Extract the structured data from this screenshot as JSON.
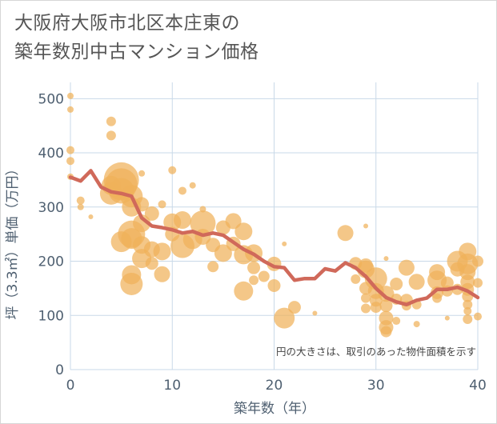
{
  "title_lines": [
    "大阪府大阪市北区本庄東の",
    "築年数別中古マンション価格"
  ],
  "colors": {
    "bubble": "#f0b25a",
    "line": "#d0695a",
    "grid": "#c9d9e8",
    "text": "#4e5f70"
  },
  "chart_data": {
    "type": "scatter",
    "title": "大阪府大阪市北区本庄東の築年数別中古マンション価格",
    "xlabel": "築年数（年）",
    "ylabel": "坪（3.3㎡）単価（万円）",
    "xlim": [
      0,
      40
    ],
    "ylim": [
      0,
      530
    ],
    "x_ticks": [
      0,
      10,
      20,
      30,
      40
    ],
    "y_ticks": [
      0,
      100,
      200,
      300,
      400,
      500
    ],
    "grid": true,
    "note": "円の大きさは、取引のあった物件面積を示す",
    "bubbles": [
      [
        0,
        505,
        4
      ],
      [
        0,
        480,
        4
      ],
      [
        0,
        405,
        5
      ],
      [
        0,
        385,
        5
      ],
      [
        0,
        356,
        4
      ],
      [
        1,
        312,
        5
      ],
      [
        1,
        300,
        4
      ],
      [
        2,
        282,
        3
      ],
      [
        4,
        458,
        6
      ],
      [
        4,
        432,
        6
      ],
      [
        4,
        340,
        12
      ],
      [
        4,
        325,
        14
      ],
      [
        5,
        350,
        22
      ],
      [
        5,
        342,
        20
      ],
      [
        5,
        330,
        16
      ],
      [
        5,
        236,
        13
      ],
      [
        6,
        320,
        14
      ],
      [
        6,
        300,
        12
      ],
      [
        6,
        250,
        17
      ],
      [
        6,
        242,
        13
      ],
      [
        6,
        175,
        12
      ],
      [
        6,
        158,
        14
      ],
      [
        7,
        305,
        9
      ],
      [
        7,
        270,
        11
      ],
      [
        7,
        230,
        11
      ],
      [
        7,
        205,
        12
      ],
      [
        7,
        362,
        4
      ],
      [
        8,
        288,
        9
      ],
      [
        8,
        222,
        10
      ],
      [
        8,
        196,
        8
      ],
      [
        9,
        218,
        11
      ],
      [
        9,
        176,
        10
      ],
      [
        9,
        305,
        5
      ],
      [
        10,
        368,
        5
      ],
      [
        10,
        272,
        11
      ],
      [
        10,
        250,
        9
      ],
      [
        11,
        330,
        5
      ],
      [
        11,
        228,
        15
      ],
      [
        11,
        276,
        11
      ],
      [
        12,
        340,
        4
      ],
      [
        12,
        240,
        12
      ],
      [
        13,
        270,
        16
      ],
      [
        13,
        245,
        10
      ],
      [
        13,
        296,
        4
      ],
      [
        14,
        190,
        7
      ],
      [
        14,
        230,
        9
      ],
      [
        15,
        262,
        9
      ],
      [
        15,
        215,
        11
      ],
      [
        16,
        274,
        10
      ],
      [
        16,
        232,
        9
      ],
      [
        17,
        255,
        11
      ],
      [
        17,
        212,
        12
      ],
      [
        17,
        145,
        12
      ],
      [
        18,
        215,
        11
      ],
      [
        18,
        188,
        8
      ],
      [
        18,
        165,
        6
      ],
      [
        19,
        172,
        7
      ],
      [
        20,
        195,
        9
      ],
      [
        20,
        155,
        8
      ],
      [
        21,
        232,
        3
      ],
      [
        21,
        95,
        13
      ],
      [
        22,
        115,
        8
      ],
      [
        24,
        104,
        3
      ],
      [
        27,
        252,
        10
      ],
      [
        28,
        196,
        8
      ],
      [
        28,
        167,
        6
      ],
      [
        29,
        192,
        9
      ],
      [
        29,
        185,
        11
      ],
      [
        29,
        150,
        8
      ],
      [
        29,
        132,
        6
      ],
      [
        29,
        113,
        6
      ],
      [
        29,
        265,
        3
      ],
      [
        30,
        168,
        14
      ],
      [
        30,
        145,
        10
      ],
      [
        30,
        128,
        8
      ],
      [
        30,
        115,
        7
      ],
      [
        31,
        140,
        10
      ],
      [
        31,
        118,
        8
      ],
      [
        31,
        95,
        9
      ],
      [
        31,
        78,
        9
      ],
      [
        31,
        70,
        7
      ],
      [
        31,
        205,
        3
      ],
      [
        32,
        158,
        8
      ],
      [
        32,
        130,
        7
      ],
      [
        32,
        90,
        5
      ],
      [
        33,
        188,
        10
      ],
      [
        33,
        128,
        8
      ],
      [
        33,
        118,
        6
      ],
      [
        34,
        162,
        10
      ],
      [
        34,
        120,
        6
      ],
      [
        34,
        84,
        4
      ],
      [
        36,
        180,
        10
      ],
      [
        36,
        165,
        12
      ],
      [
        36,
        142,
        8
      ],
      [
        36,
        132,
        6
      ],
      [
        37,
        160,
        8
      ],
      [
        37,
        145,
        7
      ],
      [
        37,
        95,
        3
      ],
      [
        38,
        200,
        13
      ],
      [
        38,
        185,
        9
      ],
      [
        38,
        148,
        7
      ],
      [
        39,
        218,
        11
      ],
      [
        39,
        195,
        13
      ],
      [
        39,
        180,
        10
      ],
      [
        39,
        162,
        9
      ],
      [
        39,
        148,
        8
      ],
      [
        39,
        135,
        7
      ],
      [
        39,
        120,
        6
      ],
      [
        39,
        108,
        5
      ],
      [
        39,
        93,
        6
      ],
      [
        40,
        200,
        7
      ],
      [
        40,
        160,
        6
      ],
      [
        40,
        98,
        5
      ]
    ],
    "bubble_format": [
      "x",
      "y",
      "size"
    ],
    "series": [
      {
        "x": [
          0,
          1,
          2,
          3,
          4,
          5,
          6,
          7,
          8,
          9,
          10,
          11,
          12,
          13,
          14,
          15,
          16,
          17,
          18,
          19,
          20,
          21,
          22,
          23,
          24,
          25,
          26,
          27,
          28,
          29,
          30,
          31,
          32,
          33,
          34,
          35,
          36,
          37,
          38,
          39,
          40
        ],
        "values": [
          355,
          348,
          367,
          337,
          328,
          325,
          320,
          280,
          265,
          262,
          258,
          252,
          255,
          248,
          252,
          248,
          235,
          222,
          213,
          200,
          190,
          188,
          165,
          168,
          168,
          186,
          182,
          197,
          188,
          172,
          150,
          133,
          125,
          120,
          128,
          132,
          148,
          148,
          152,
          145,
          133
        ]
      }
    ]
  }
}
